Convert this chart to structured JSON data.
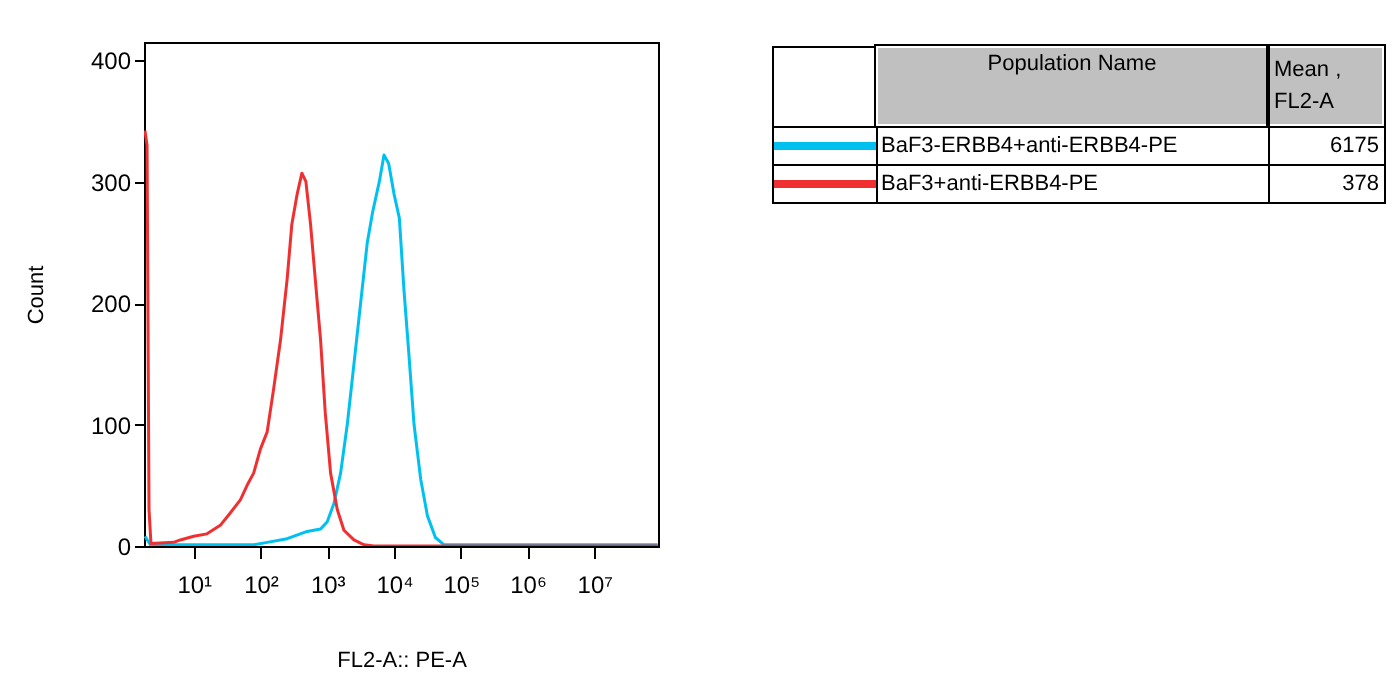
{
  "chart_data": {
    "type": "line",
    "xlabel": "FL2-A:: PE-A",
    "ylabel": "Count",
    "log": "x",
    "xlim": [
      1.8,
      90000000
    ],
    "xticks": [
      {
        "value": 10,
        "label": "10¹"
      },
      {
        "value": 100,
        "label": "10²"
      },
      {
        "value": 1000,
        "label": "10³"
      },
      {
        "value": 10000,
        "label": "10⁴"
      },
      {
        "value": 100000,
        "label": "10⁵"
      },
      {
        "value": 1000000,
        "label": "10⁶"
      },
      {
        "value": 10000000,
        "label": "10⁷"
      }
    ],
    "ylim": [
      0,
      415
    ],
    "yticks": [
      0,
      100,
      200,
      300,
      400
    ],
    "grid": false,
    "legend": "top right",
    "marker": "none",
    "legend_title": "Population Name",
    "annotations": [
      "Mean , FL2-A",
      "6175",
      "378"
    ],
    "series": [
      {
        "name": "BaF3-ERBB4+anti-ERBB4-PE",
        "color": "#00c0f0",
        "x": [
          1.86,
          2.24,
          79,
          126,
          251,
          501,
          794,
          1000,
          1259,
          1585,
          1995,
          2512,
          3162,
          3981,
          4786,
          6026,
          7079,
          8318,
          10000,
          12023,
          14125,
          16596,
          19953,
          25119,
          31623,
          41687,
          56234,
          89000000
        ],
        "values": [
          8,
          1,
          1,
          3,
          6,
          12,
          14,
          20,
          35,
          60,
          100,
          150,
          200,
          250,
          275,
          300,
          322,
          315,
          290,
          270,
          210,
          160,
          100,
          55,
          25,
          7,
          1,
          1
        ]
      },
      {
        "name": "BaF3+anti-ERBB4-PE",
        "color": "#f03030",
        "x": [
          1.86,
          2.0,
          2.14,
          2.29,
          5.0,
          6.3,
          10,
          15.8,
          25,
          35,
          50,
          63,
          79,
          100,
          126,
          158,
          200,
          251,
          295,
          355,
          417,
          479,
          562,
          661,
          794,
          933,
          1122,
          1413,
          1778,
          2512,
          3548,
          5012,
          89000000
        ],
        "values": [
          342,
          330,
          30,
          2,
          3,
          5,
          8,
          10,
          17,
          27,
          38,
          50,
          60,
          80,
          94,
          130,
          170,
          220,
          265,
          290,
          307,
          300,
          265,
          220,
          170,
          110,
          60,
          30,
          13,
          5,
          1,
          0,
          0
        ]
      }
    ]
  }
}
